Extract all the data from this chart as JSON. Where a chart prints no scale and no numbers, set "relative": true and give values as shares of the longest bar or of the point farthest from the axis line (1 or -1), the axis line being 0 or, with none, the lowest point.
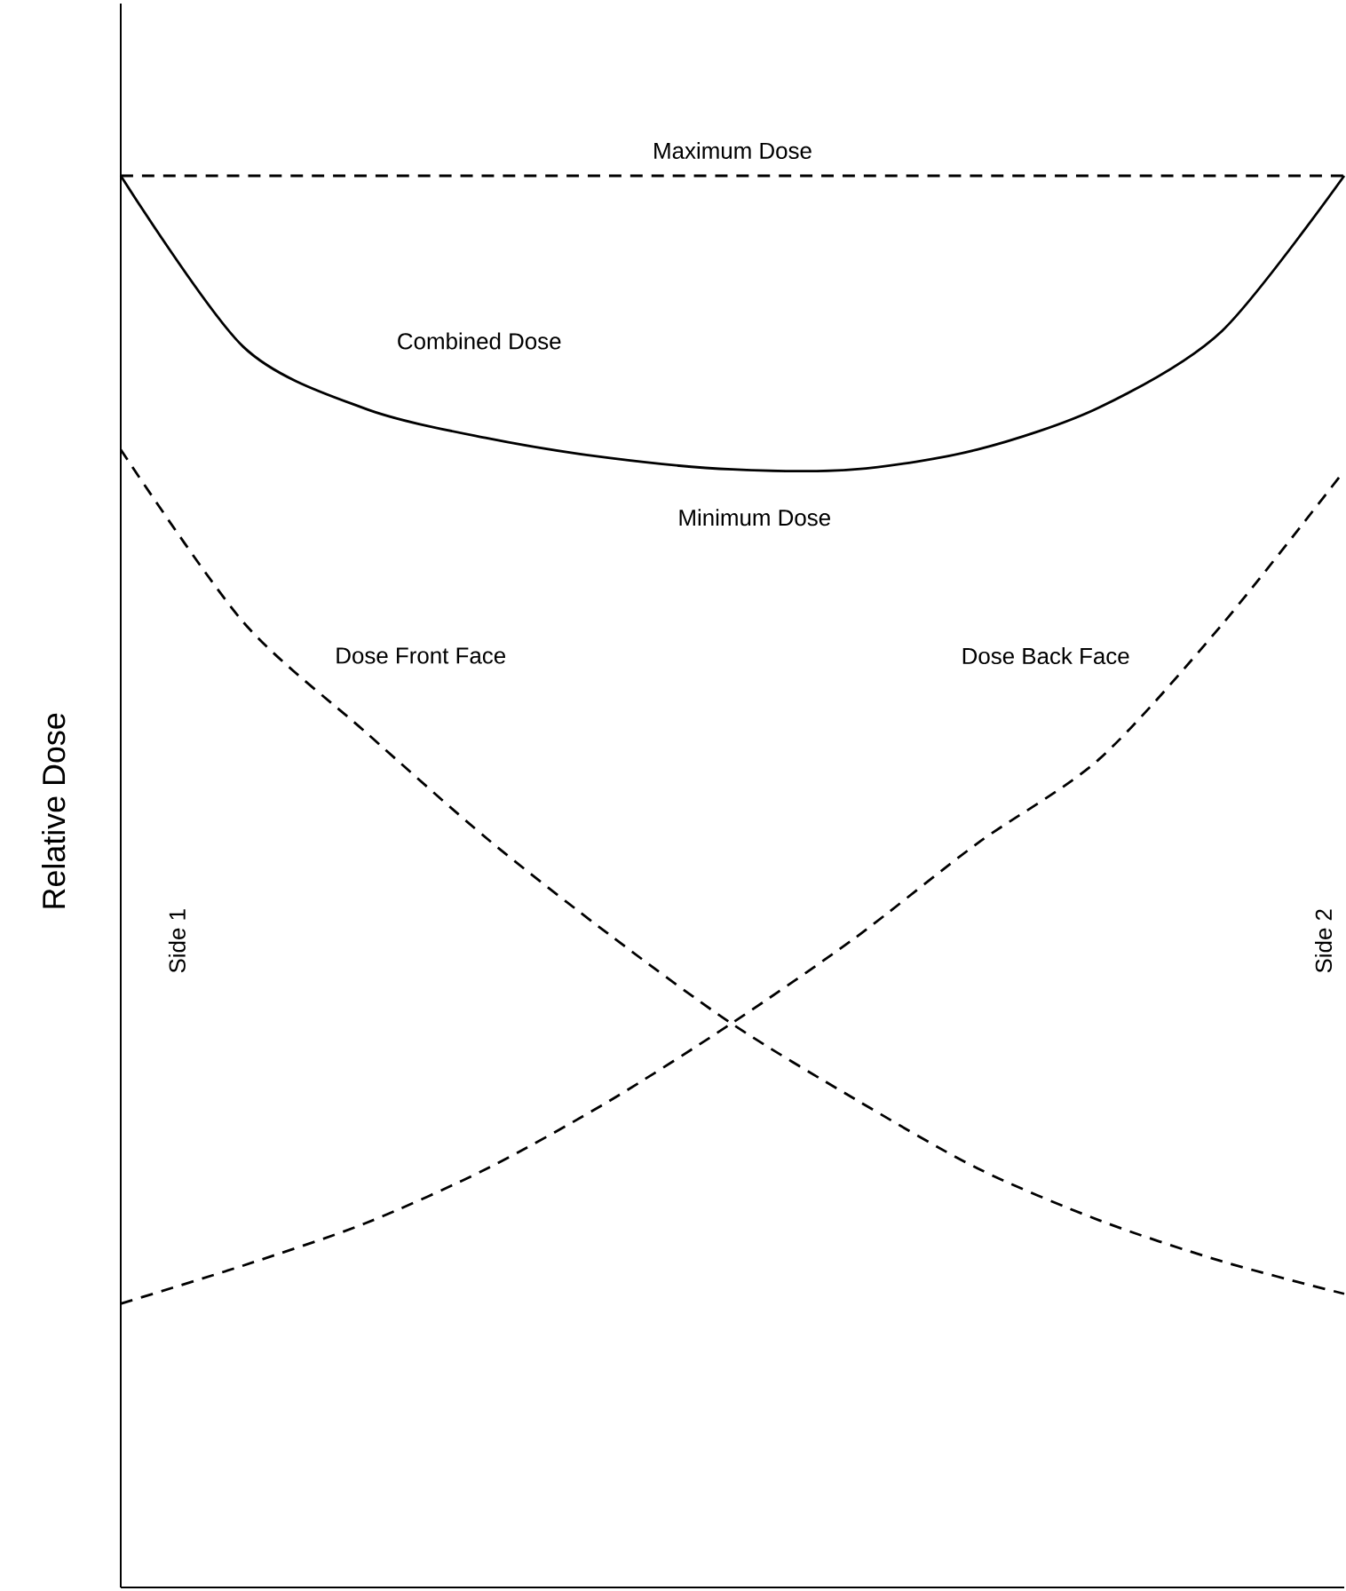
{
  "chart_data": {
    "type": "line",
    "relative": true,
    "ylabel": "Relative Dose",
    "categories": [
      null,
      null,
      null,
      null,
      null,
      null,
      null,
      null,
      null,
      null,
      null
    ],
    "series": [
      {
        "name": "Combined Dose",
        "color": "#000000",
        "line_style": "solid",
        "values": [
          1.0,
          0.879,
          0.835,
          0.814,
          0.8,
          0.792,
          0.792,
          0.806,
          0.836,
          0.89,
          1.0
        ]
      },
      {
        "name": "Dose Front Face",
        "color": "#000000",
        "line_style": "dashed",
        "values": [
          0.806,
          0.684,
          0.606,
          0.53,
          0.462,
          0.399,
          0.346,
          0.297,
          0.26,
          0.231,
          0.208
        ]
      },
      {
        "name": "Dose Back Face",
        "color": "#000000",
        "line_style": "dashed",
        "values": [
          0.201,
          0.228,
          0.258,
          0.297,
          0.345,
          0.4,
          0.46,
          0.527,
          0.587,
          0.682,
          0.791
        ]
      }
    ],
    "ref_lines": [
      {
        "axis": "y",
        "value": 1.0,
        "label": "Maximum Dose",
        "color": "#000000",
        "line_style": "dashed"
      }
    ],
    "annotations": [
      "Minimum Dose",
      "Side 1",
      "Side 2"
    ]
  }
}
